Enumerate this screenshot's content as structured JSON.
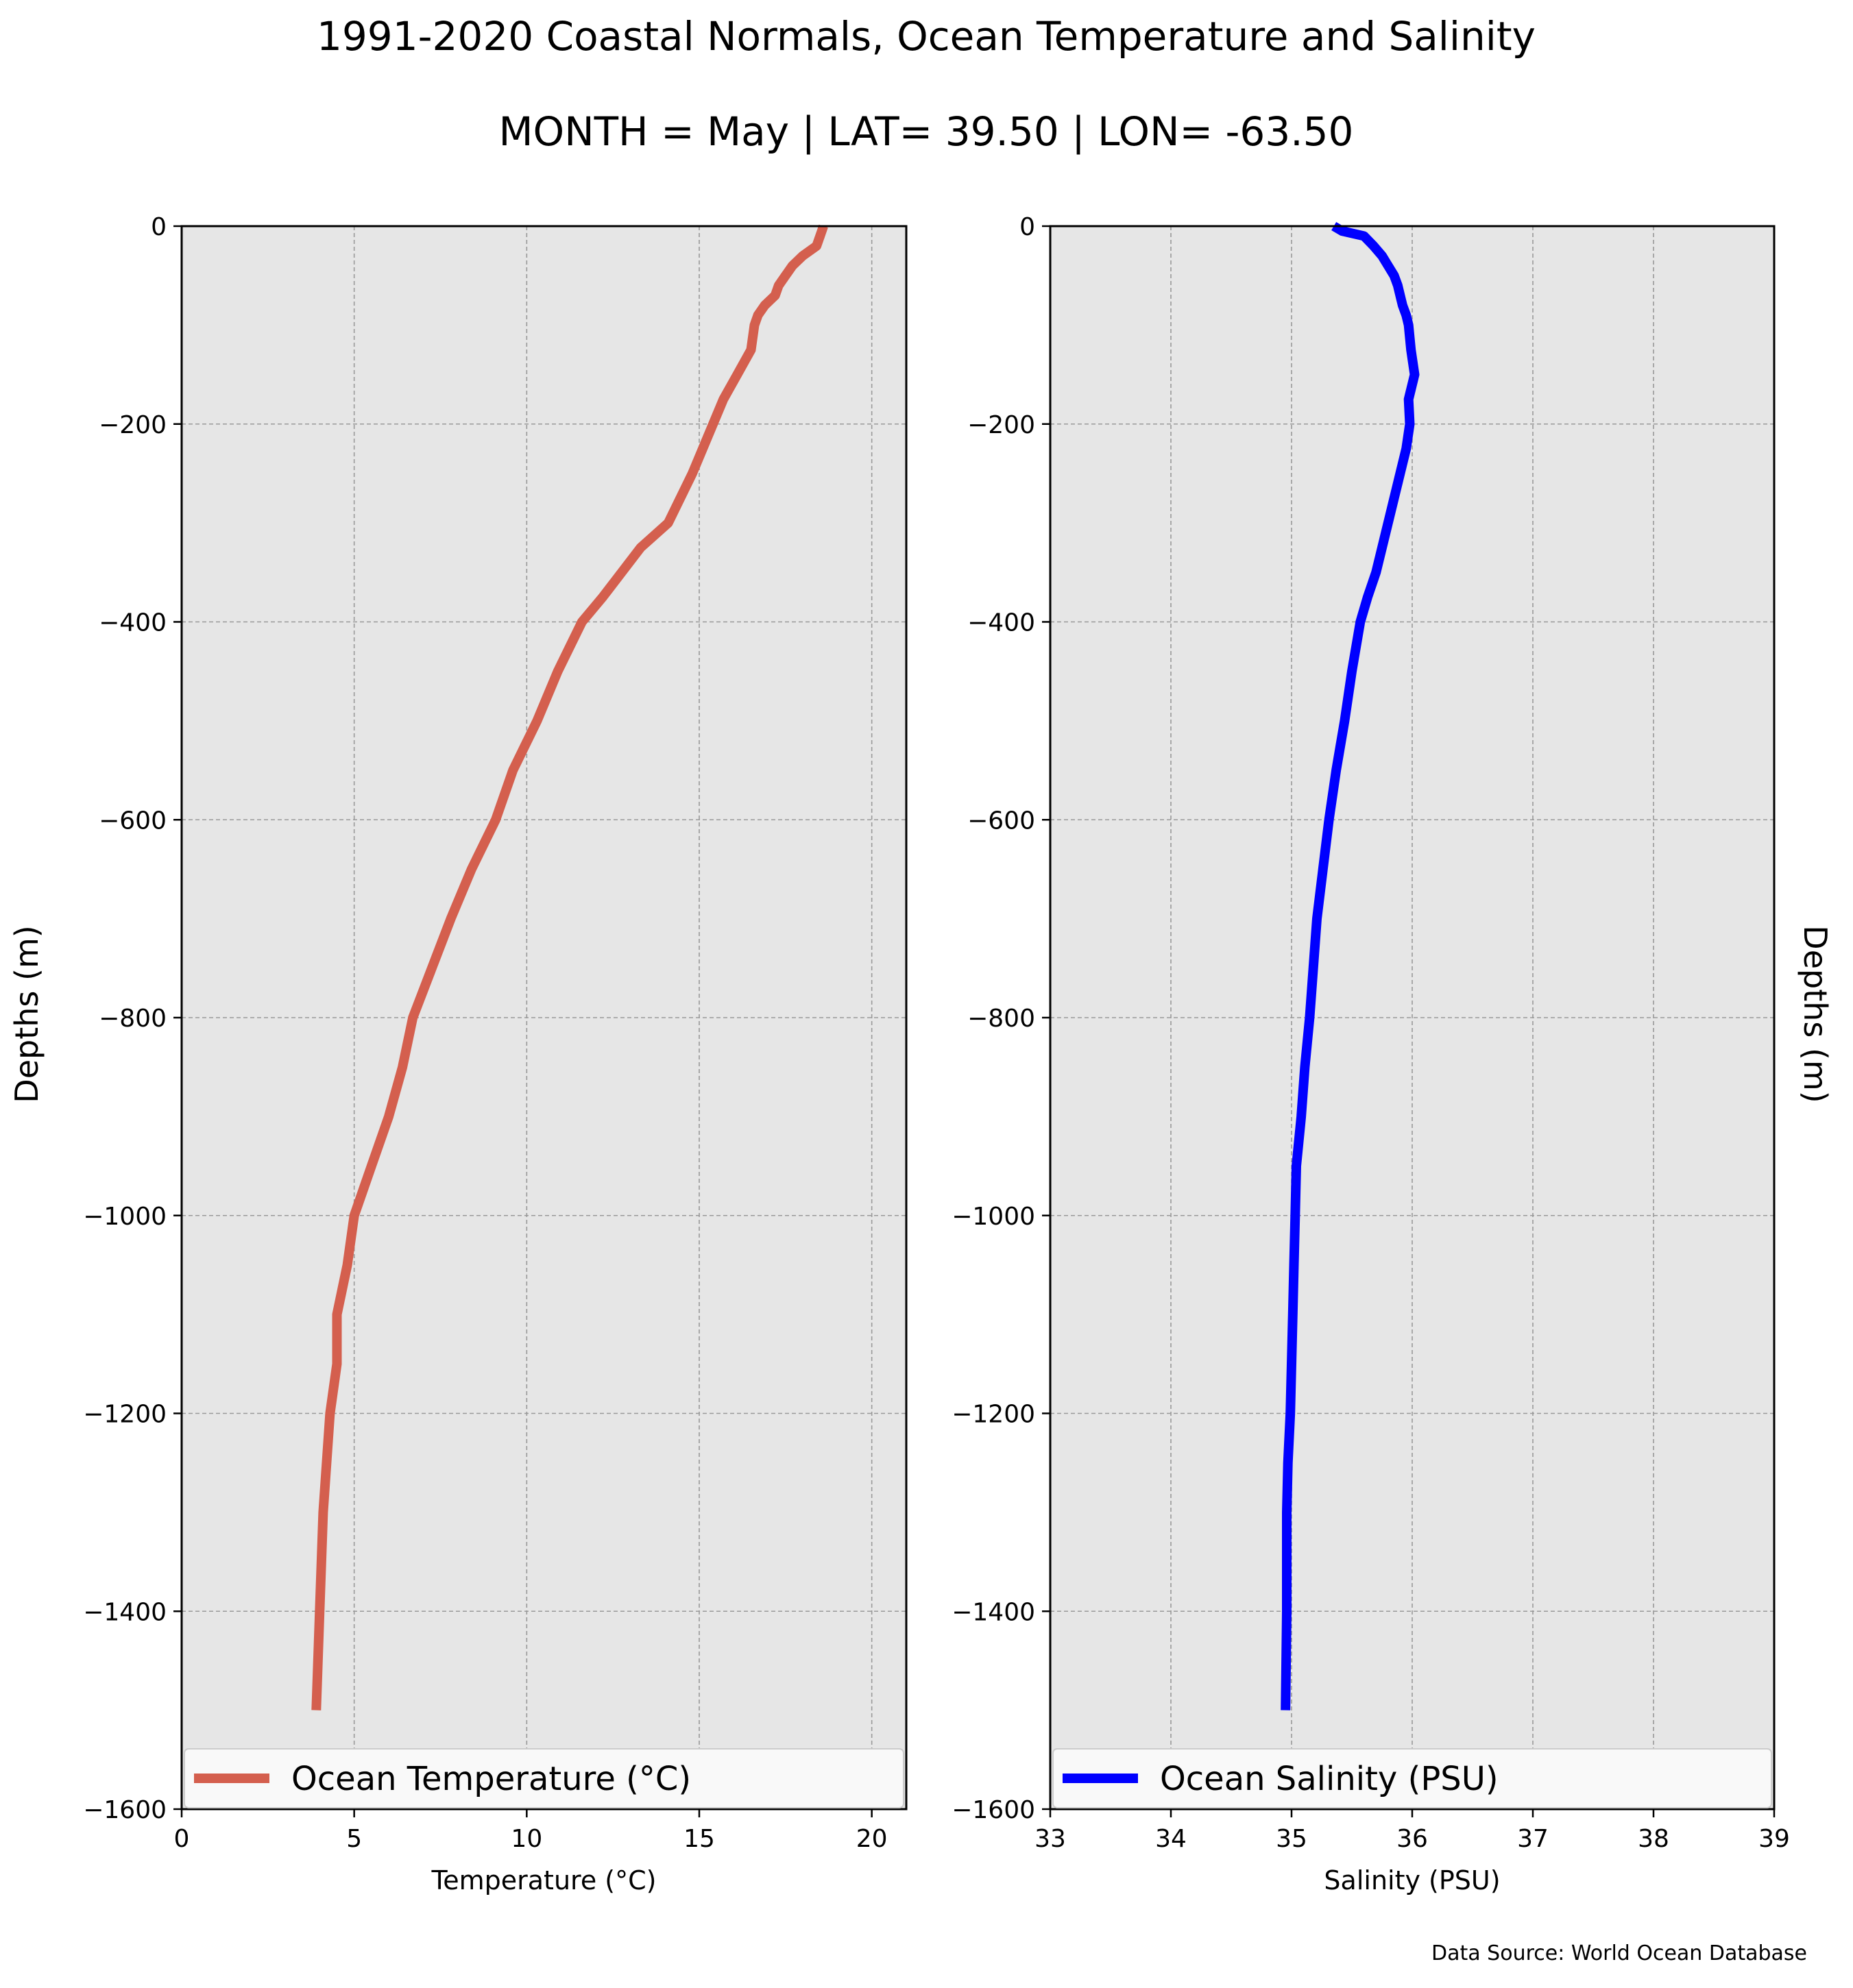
{
  "title_line1": "1991-2020 Coastal Normals, Ocean Temperature and Salinity",
  "title_line2": "MONTH = May | LAT= 39.50 | LON= -63.50",
  "data_source": "Data Source: World Ocean Database",
  "chart_data": [
    {
      "type": "line",
      "xlabel": "Temperature (°C)",
      "ylabel": "Depths (m)",
      "xlim": [
        0,
        21
      ],
      "ylim": [
        -1600,
        0
      ],
      "xticks": [
        0,
        5,
        10,
        15,
        20
      ],
      "yticks": [
        0,
        -200,
        -400,
        -600,
        -800,
        -1000,
        -1200,
        -1400,
        -1600
      ],
      "grid": true,
      "legend_position": "bottom",
      "background": "#e6e6e6",
      "series": [
        {
          "name": "Ocean Temperature (°C)",
          "color": "#d45f4e",
          "points": [
            [
              18.6,
              0
            ],
            [
              18.5,
              -10
            ],
            [
              18.4,
              -20
            ],
            [
              18.0,
              -30
            ],
            [
              17.7,
              -40
            ],
            [
              17.5,
              -50
            ],
            [
              17.3,
              -60
            ],
            [
              17.2,
              -70
            ],
            [
              16.9,
              -80
            ],
            [
              16.7,
              -90
            ],
            [
              16.6,
              -100
            ],
            [
              16.5,
              -125
            ],
            [
              16.1,
              -150
            ],
            [
              15.7,
              -175
            ],
            [
              15.4,
              -200
            ],
            [
              14.8,
              -250
            ],
            [
              14.1,
              -300
            ],
            [
              13.3,
              -325
            ],
            [
              12.2,
              -375
            ],
            [
              11.6,
              -400
            ],
            [
              10.9,
              -450
            ],
            [
              10.3,
              -500
            ],
            [
              9.6,
              -550
            ],
            [
              9.1,
              -600
            ],
            [
              8.4,
              -650
            ],
            [
              7.8,
              -700
            ],
            [
              6.7,
              -800
            ],
            [
              6.4,
              -850
            ],
            [
              6.0,
              -900
            ],
            [
              5.5,
              -950
            ],
            [
              5.0,
              -1000
            ],
            [
              4.8,
              -1050
            ],
            [
              4.5,
              -1100
            ],
            [
              4.5,
              -1150
            ],
            [
              4.3,
              -1200
            ],
            [
              4.2,
              -1250
            ],
            [
              4.1,
              -1300
            ],
            [
              4.0,
              -1400
            ],
            [
              3.9,
              -1500
            ]
          ]
        }
      ]
    },
    {
      "type": "line",
      "xlabel": "Salinity (PSU)",
      "ylabel": "Depths (m)",
      "xlim": [
        33,
        39
      ],
      "ylim": [
        -1600,
        0
      ],
      "xticks": [
        33,
        34,
        35,
        36,
        37,
        38,
        39
      ],
      "yticks": [
        0,
        -200,
        -400,
        -600,
        -800,
        -1000,
        -1200,
        -1400,
        -1600
      ],
      "grid": true,
      "legend_position": "bottom",
      "background": "#e6e6e6",
      "series": [
        {
          "name": "Ocean Salinity (PSU)",
          "color": "#0000ff",
          "points": [
            [
              35.35,
              0
            ],
            [
              35.42,
              -5
            ],
            [
              35.6,
              -10
            ],
            [
              35.68,
              -20
            ],
            [
              35.75,
              -30
            ],
            [
              35.8,
              -40
            ],
            [
              35.85,
              -50
            ],
            [
              35.88,
              -60
            ],
            [
              35.9,
              -70
            ],
            [
              35.92,
              -80
            ],
            [
              35.95,
              -90
            ],
            [
              35.97,
              -100
            ],
            [
              35.99,
              -125
            ],
            [
              36.02,
              -150
            ],
            [
              35.97,
              -175
            ],
            [
              35.98,
              -200
            ],
            [
              35.95,
              -225
            ],
            [
              35.9,
              -250
            ],
            [
              35.8,
              -300
            ],
            [
              35.7,
              -350
            ],
            [
              35.63,
              -375
            ],
            [
              35.57,
              -400
            ],
            [
              35.5,
              -450
            ],
            [
              35.44,
              -500
            ],
            [
              35.37,
              -550
            ],
            [
              35.31,
              -600
            ],
            [
              35.26,
              -650
            ],
            [
              35.21,
              -700
            ],
            [
              35.15,
              -800
            ],
            [
              35.11,
              -850
            ],
            [
              35.08,
              -900
            ],
            [
              35.04,
              -950
            ],
            [
              35.03,
              -1000
            ],
            [
              35.02,
              -1050
            ],
            [
              35.01,
              -1100
            ],
            [
              35.0,
              -1150
            ],
            [
              34.99,
              -1200
            ],
            [
              34.97,
              -1250
            ],
            [
              34.96,
              -1300
            ],
            [
              34.96,
              -1400
            ],
            [
              34.95,
              -1500
            ]
          ]
        }
      ]
    }
  ]
}
